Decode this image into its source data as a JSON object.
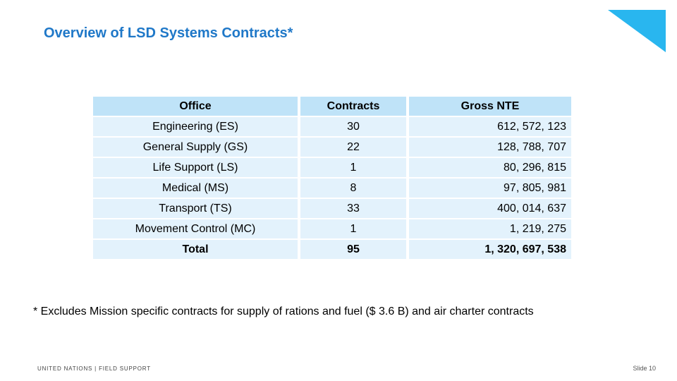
{
  "slide": {
    "title": "Overview of LSD Systems Contracts*",
    "footnote": "* Excludes Mission specific contracts for supply of rations and fuel ($ 3.6 B) and air charter contracts",
    "footer_left": "UNITED NATIONS | FIELD SUPPORT",
    "footer_right": "Slide 10",
    "accent_color": "#1f78c8",
    "corner_color": "#29b6ef"
  },
  "table": {
    "headers": [
      "Office",
      "Contracts",
      "Gross NTE"
    ],
    "rows": [
      [
        "Engineering (ES)",
        "30",
        "612, 572, 123"
      ],
      [
        "General Supply (GS)",
        "22",
        "128, 788, 707"
      ],
      [
        "Life Support (LS)",
        "1",
        "80, 296, 815"
      ],
      [
        "Medical (MS)",
        "8",
        "97, 805, 981"
      ],
      [
        "Transport (TS)",
        "33",
        "400, 014, 637"
      ],
      [
        "Movement Control (MC)",
        "1",
        "1, 219, 275"
      ]
    ],
    "total": [
      "Total",
      "95",
      "1, 320, 697, 538"
    ]
  }
}
